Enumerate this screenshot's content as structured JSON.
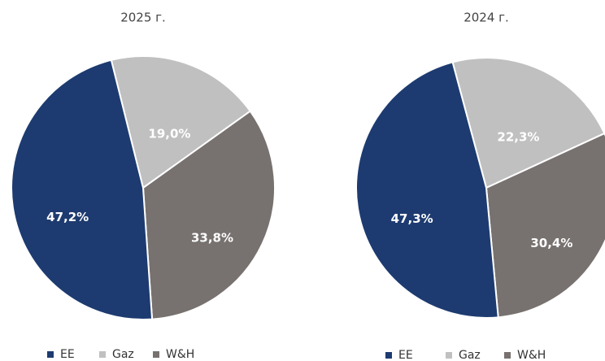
{
  "chart_data": [
    {
      "type": "pie",
      "title": "2025 г.",
      "categories": [
        "EE",
        "Gaz",
        "W&H"
      ],
      "values": [
        47.2,
        19.0,
        33.8
      ],
      "value_labels": [
        "47,2%",
        "19,0%",
        "33,8%"
      ],
      "colors": [
        "#1d3b70",
        "#c0c0c0",
        "#77716f"
      ]
    },
    {
      "type": "pie",
      "title": "2024 г.",
      "categories": [
        "EE",
        "Gaz",
        "W&H"
      ],
      "values": [
        47.3,
        22.3,
        30.4
      ],
      "value_labels": [
        "47,3%",
        "22,3%",
        "30,4%"
      ],
      "colors": [
        "#1d3b70",
        "#c0c0c0",
        "#77716f"
      ]
    }
  ]
}
